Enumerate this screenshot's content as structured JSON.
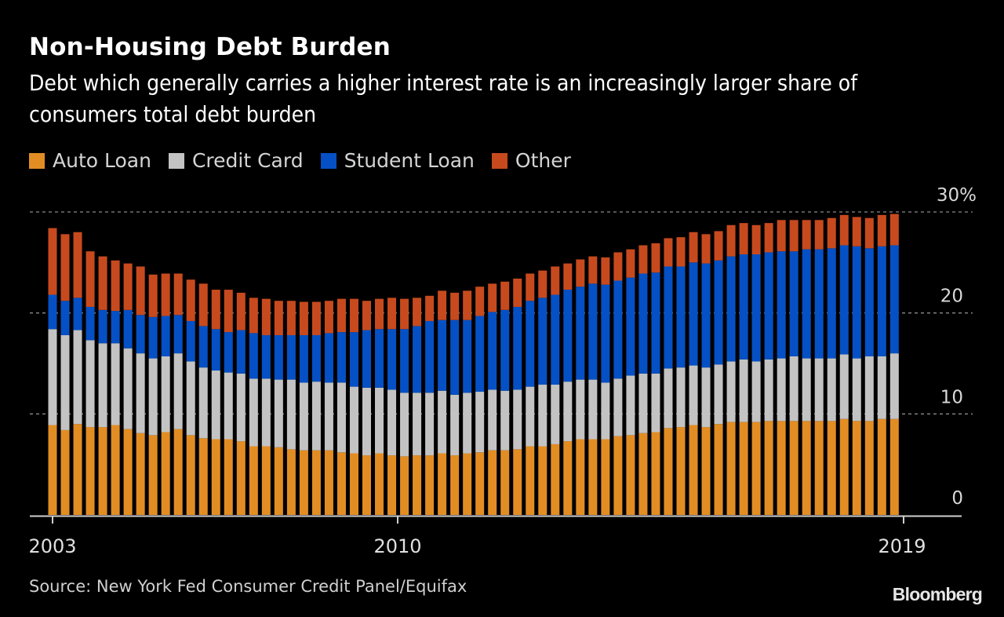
{
  "header": {
    "title": "Non-Housing Debt Burden",
    "subtitle": "Debt which generally carries a higher interest rate is an increasingly larger share of consumers total debt burden"
  },
  "footer": {
    "source": "Source: New York Fed Consumer Credit Panel/Equifax",
    "logo": "Bloomberg"
  },
  "chart_data": {
    "type": "bar",
    "stacked": true,
    "title": "Non-Housing Debt Burden",
    "subtitle": "Debt which generally carries a higher interest rate is an increasingly larger share of consumers total debt burden",
    "xlabel": "",
    "ylabel": "% of total debt",
    "ylim": [
      0,
      30
    ],
    "y_ticks": [
      {
        "value": 0,
        "label": "0"
      },
      {
        "value": 10,
        "label": "10"
      },
      {
        "value": 20,
        "label": "20"
      },
      {
        "value": 30,
        "label": "30%"
      }
    ],
    "x_ticks": [
      {
        "index": 0,
        "label": "2003"
      },
      {
        "index": 28,
        "label": "2010"
      },
      {
        "index": 68,
        "label": "2019"
      }
    ],
    "grid": "horizontal dotted",
    "y_axis_position": "right",
    "legend_position": "top-left",
    "categories": [
      "2003Q1",
      "2003Q2",
      "2003Q3",
      "2003Q4",
      "2004Q1",
      "2004Q2",
      "2004Q3",
      "2004Q4",
      "2005Q1",
      "2005Q2",
      "2005Q3",
      "2005Q4",
      "2006Q1",
      "2006Q2",
      "2006Q3",
      "2006Q4",
      "2007Q1",
      "2007Q2",
      "2007Q3",
      "2007Q4",
      "2008Q1",
      "2008Q2",
      "2008Q3",
      "2008Q4",
      "2009Q1",
      "2009Q2",
      "2009Q3",
      "2009Q4",
      "2010Q1",
      "2010Q2",
      "2010Q3",
      "2010Q4",
      "2011Q1",
      "2011Q2",
      "2011Q3",
      "2011Q4",
      "2012Q1",
      "2012Q2",
      "2012Q3",
      "2012Q4",
      "2013Q1",
      "2013Q2",
      "2013Q3",
      "2013Q4",
      "2014Q1",
      "2014Q2",
      "2014Q3",
      "2014Q4",
      "2015Q1",
      "2015Q2",
      "2015Q3",
      "2015Q4",
      "2016Q1",
      "2016Q2",
      "2016Q3",
      "2016Q4",
      "2017Q1",
      "2017Q2",
      "2017Q3",
      "2017Q4",
      "2018Q1",
      "2018Q2",
      "2018Q3",
      "2018Q4",
      "2019Q1",
      "2019Q2",
      "2019Q3",
      "2019Q4"
    ],
    "series": [
      {
        "name": "Auto Loan",
        "color": "#e28d24",
        "values": [
          8.9,
          8.4,
          9.0,
          8.7,
          8.7,
          8.9,
          8.5,
          8.1,
          7.9,
          8.2,
          8.5,
          7.9,
          7.6,
          7.5,
          7.5,
          7.3,
          6.8,
          6.8,
          6.7,
          6.5,
          6.4,
          6.4,
          6.4,
          6.2,
          6.1,
          5.9,
          6.1,
          5.9,
          5.8,
          5.9,
          5.9,
          6.1,
          5.9,
          6.1,
          6.2,
          6.4,
          6.4,
          6.5,
          6.8,
          6.8,
          7.0,
          7.3,
          7.5,
          7.5,
          7.5,
          7.8,
          7.9,
          8.1,
          8.2,
          8.6,
          8.7,
          8.9,
          8.7,
          9.0,
          9.2,
          9.2,
          9.2,
          9.3,
          9.3,
          9.3,
          9.3,
          9.3,
          9.3,
          9.5,
          9.3,
          9.3,
          9.5,
          9.5
        ]
      },
      {
        "name": "Credit Card",
        "color": "#c3c3c3",
        "values": [
          9.5,
          9.4,
          9.3,
          8.6,
          8.3,
          8.1,
          8.0,
          7.9,
          7.6,
          7.5,
          7.5,
          7.3,
          7.0,
          6.8,
          6.6,
          6.7,
          6.7,
          6.7,
          6.7,
          6.9,
          6.7,
          6.8,
          6.7,
          6.9,
          6.6,
          6.7,
          6.5,
          6.5,
          6.3,
          6.2,
          6.2,
          6.2,
          6.0,
          6.0,
          6.0,
          6.0,
          5.9,
          5.9,
          5.9,
          6.1,
          5.9,
          5.9,
          5.9,
          5.9,
          5.6,
          5.7,
          5.9,
          5.9,
          5.8,
          5.9,
          5.9,
          5.9,
          5.9,
          5.9,
          6.0,
          6.2,
          6.0,
          6.1,
          6.2,
          6.4,
          6.2,
          6.2,
          6.2,
          6.4,
          6.2,
          6.4,
          6.2,
          6.5
        ]
      },
      {
        "name": "Student Loan",
        "color": "#0550c4",
        "values": [
          3.4,
          3.4,
          3.2,
          3.3,
          3.3,
          3.2,
          3.8,
          3.8,
          4.1,
          4.0,
          3.8,
          4.0,
          4.1,
          4.1,
          4.0,
          4.3,
          4.5,
          4.3,
          4.4,
          4.4,
          4.7,
          4.6,
          4.9,
          5.0,
          5.4,
          5.7,
          5.8,
          6.0,
          6.3,
          6.6,
          7.1,
          7.0,
          7.4,
          7.2,
          7.5,
          7.7,
          8.0,
          8.2,
          8.5,
          8.6,
          8.9,
          9.1,
          9.2,
          9.5,
          9.7,
          9.7,
          9.7,
          9.9,
          10.0,
          10.1,
          10.0,
          10.2,
          10.3,
          10.3,
          10.4,
          10.4,
          10.6,
          10.6,
          10.6,
          10.4,
          10.8,
          10.8,
          10.9,
          10.8,
          11.1,
          10.7,
          10.9,
          10.7
        ]
      },
      {
        "name": "Other",
        "color": "#c74a1e",
        "values": [
          6.6,
          6.6,
          6.5,
          5.5,
          5.3,
          5.0,
          4.6,
          4.8,
          4.2,
          4.2,
          4.1,
          4.1,
          4.2,
          3.9,
          4.2,
          3.7,
          3.5,
          3.6,
          3.4,
          3.4,
          3.3,
          3.3,
          3.2,
          3.3,
          3.3,
          2.9,
          3.0,
          3.1,
          3.0,
          2.8,
          2.5,
          2.9,
          2.7,
          2.9,
          2.9,
          2.8,
          2.8,
          2.8,
          2.7,
          2.7,
          2.8,
          2.6,
          2.7,
          2.7,
          2.7,
          2.8,
          2.8,
          2.8,
          2.9,
          2.8,
          2.9,
          3.0,
          2.9,
          2.9,
          3.1,
          3.1,
          2.9,
          2.9,
          3.1,
          3.1,
          2.9,
          2.9,
          3.0,
          3.0,
          2.9,
          3.0,
          3.1,
          3.1
        ]
      }
    ]
  }
}
